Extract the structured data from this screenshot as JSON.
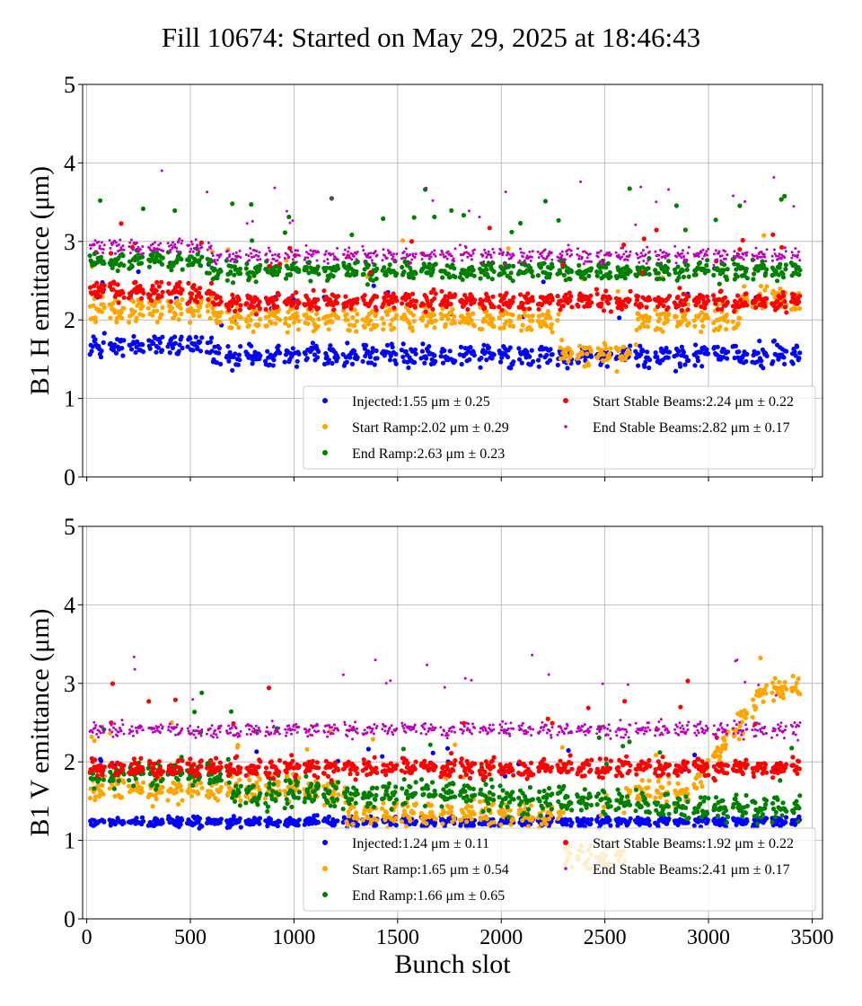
{
  "title": "Fill 10674: Started on May 29, 2025 at 18:46:43",
  "chart_data": [
    {
      "type": "scatter",
      "ylabel": "B1 H emittance (μm)",
      "xlabel": "",
      "xlim": [
        -20,
        3550
      ],
      "ylim": [
        0,
        5
      ],
      "xticks": [
        "0",
        "500",
        "1000",
        "1500",
        "2000",
        "2500",
        "3000",
        "3500"
      ],
      "yticks": [
        "0",
        "1",
        "2",
        "3",
        "4",
        "5"
      ],
      "grid": true,
      "legend_position": "lower-right",
      "series": [
        {
          "name": "Injected:",
          "legend": "Injected:1.55 μm ± 0.25",
          "mean": 1.55,
          "std": 0.25,
          "color": "#0000ff"
        },
        {
          "name": "Start Ramp:",
          "legend": "Start Ramp:2.02 μm ± 0.29",
          "mean": 2.02,
          "std": 0.29,
          "color": "#ffa500"
        },
        {
          "name": "End Ramp:",
          "legend": "End Ramp:2.63 μm ± 0.23",
          "mean": 2.63,
          "std": 0.23,
          "color": "#008000"
        },
        {
          "name": "Start Stable Beams:",
          "legend": "Start Stable Beams:2.24 μm ± 0.22",
          "mean": 2.24,
          "std": 0.22,
          "color": "#ff0000"
        },
        {
          "name": "End Stable Beams:",
          "legend": "End Stable Beams:2.82 μm ± 0.17",
          "mean": 2.82,
          "std": 0.17,
          "color": "#bf00bf"
        }
      ]
    },
    {
      "type": "scatter",
      "ylabel": "B1 V emittance (μm)",
      "xlabel": "Bunch slot",
      "xlim": [
        -20,
        3550
      ],
      "ylim": [
        0,
        5
      ],
      "xticks": [
        "0",
        "500",
        "1000",
        "1500",
        "2000",
        "2500",
        "3000",
        "3500"
      ],
      "yticks": [
        "0",
        "1",
        "2",
        "3",
        "4",
        "5"
      ],
      "grid": true,
      "legend_position": "lower-right",
      "series": [
        {
          "name": "Injected:",
          "legend": "Injected:1.24 μm ± 0.11",
          "mean": 1.24,
          "std": 0.11,
          "color": "#0000ff"
        },
        {
          "name": "Start Ramp:",
          "legend": "Start Ramp:1.65 μm ± 0.54",
          "mean": 1.65,
          "std": 0.54,
          "color": "#ffa500"
        },
        {
          "name": "End Ramp:",
          "legend": "End Ramp:1.66 μm ± 0.65",
          "mean": 1.66,
          "std": 0.65,
          "color": "#008000"
        },
        {
          "name": "Start Stable Beams:",
          "legend": "Start Stable Beams:1.92 μm ± 0.22",
          "mean": 1.92,
          "std": 0.22,
          "color": "#ff0000"
        },
        {
          "name": "End Stable Beams:",
          "legend": "End Stable Beams:2.41 μm ± 0.17",
          "mean": 2.41,
          "std": 0.17,
          "color": "#bf00bf"
        }
      ]
    }
  ]
}
